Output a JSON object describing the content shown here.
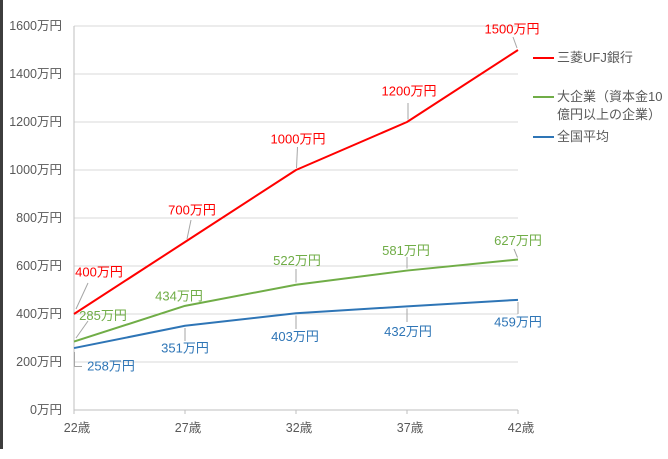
{
  "chart_data": {
    "type": "line",
    "title": "",
    "categories": [
      "22歳",
      "27歳",
      "32歳",
      "37歳",
      "42歳"
    ],
    "xlabel": "",
    "ylabel": "",
    "y_axis": {
      "min": 0,
      "max": 1600,
      "step": 200,
      "tick_labels": [
        "0万円",
        "200万円",
        "400万円",
        "600万円",
        "800万円",
        "1000万円",
        "1200万円",
        "1400万円",
        "1600万円"
      ]
    },
    "grid": "horizontal",
    "legend_position": "right",
    "series": [
      {
        "name": "三菱UFJ銀行",
        "color": "#FF0000",
        "values": [
          400,
          700,
          1000,
          1200,
          1500
        ],
        "labels": [
          "400万円",
          "700万円",
          "1000万円",
          "1200万円",
          "1500万円"
        ]
      },
      {
        "name": "大企業（資本金10億円以上の企業）",
        "color": "#70AD47",
        "values": [
          285,
          434,
          522,
          581,
          627
        ],
        "labels": [
          "285万円",
          "434万円",
          "522万円",
          "581万円",
          "627万円"
        ]
      },
      {
        "name": "全国平均",
        "color": "#2E75B6",
        "values": [
          258,
          351,
          403,
          432,
          459
        ],
        "labels": [
          "258万円",
          "351万円",
          "403万円",
          "432万円",
          "459万円"
        ]
      }
    ]
  },
  "legend": {
    "items": [
      {
        "label": "三菱UFJ銀行",
        "color": "#FF0000"
      },
      {
        "label": "大企業（資本金10億円以上の企業）",
        "color": "#70AD47"
      },
      {
        "label": "全国平均",
        "color": "#2E75B6"
      }
    ]
  },
  "colors": {
    "axis_text": "#595959",
    "gridline": "#D9D9D9",
    "axis_line": "#BFBFBF",
    "leader": "#A6A6A6",
    "frame": "#3D3D3D"
  }
}
